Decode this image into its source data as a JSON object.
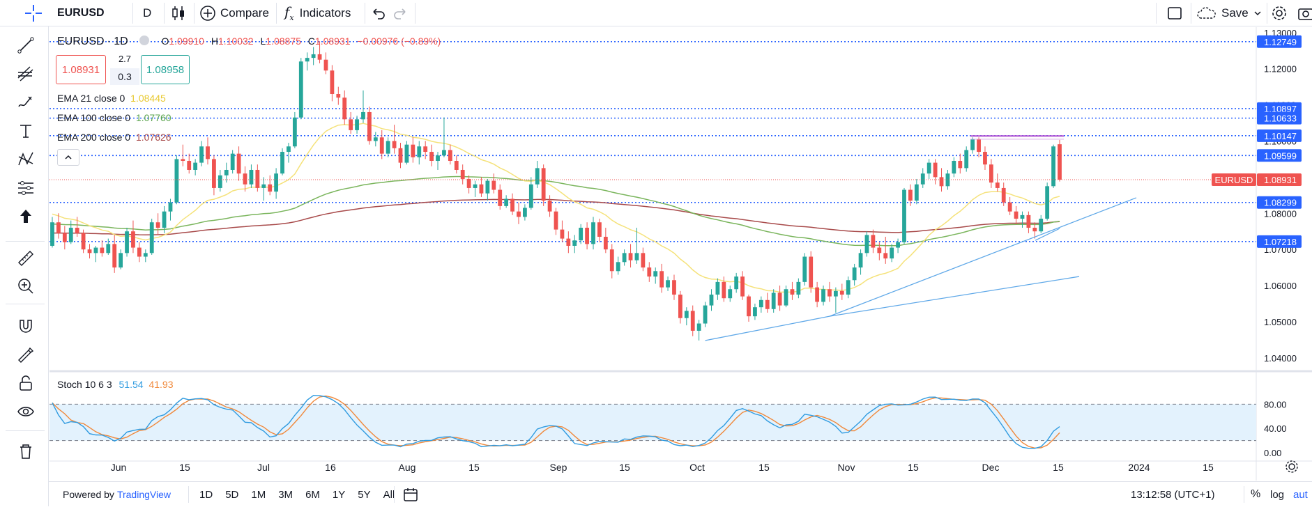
{
  "toolbar": {
    "symbol": "EURUSD",
    "interval": "D",
    "compare_label": "Compare",
    "indicators_label": "Indicators",
    "save_label": "Save",
    "icons": [
      "candles-icon",
      "compare-icon",
      "indicators-icon",
      "undo-icon",
      "redo-icon",
      "layout-icon",
      "cloud-icon",
      "settings-icon",
      "camera-icon"
    ]
  },
  "left_tools": [
    "crosshair-icon",
    "trend-line-icon",
    "fib-icon",
    "brush-icon",
    "text-icon",
    "pattern-icon",
    "forecast-icon",
    "arrow-up-icon",
    "ruler-icon",
    "zoom-in-icon",
    "magnet-icon",
    "lock-drawing-icon",
    "unlock-icon",
    "eye-icon",
    "trash-icon"
  ],
  "legend": {
    "symbol": "EURUSD",
    "interval": "1D",
    "o_label": "O",
    "o": "1.09910",
    "h_label": "H",
    "h": "1.10032",
    "l_label": "L",
    "l": "1.08875",
    "c_label": "C",
    "c": "1.08931",
    "change": "−0.00976 (−0.89%)",
    "sell_price": "1.08931",
    "spread_top": "2.7",
    "spread_bottom": "0.3",
    "buy_price": "1.08958",
    "ema21_label": "EMA 21 close 0",
    "ema21_value": "1.08445",
    "ema100_label": "EMA 100 close 0",
    "ema100_value": "1.07760",
    "ema200_label": "EMA 200 close 0",
    "ema200_value": "1.07626",
    "collapse_icon": "chevron-up-icon"
  },
  "stoch_legend": {
    "label": "Stoch 10 6 3",
    "k": "51.54",
    "d": "41.93"
  },
  "colors": {
    "up": "#26a69a",
    "down": "#ef5350",
    "ema21": "#f5e27a",
    "ema100": "#7ab55c",
    "ema200": "#a84a4a",
    "hline": "#2962ff",
    "trend": "#5fa8e8",
    "stoch_k": "#2f9be0",
    "stoch_d": "#f0883a",
    "stoch_band": "#e3f2fd",
    "current_price": "#ef5350"
  },
  "chart_data": {
    "type": "candlestick",
    "symbol": "EURUSD",
    "price_axis_ticks": [
      "1.13000",
      "1.12000",
      "1.11000",
      "1.10000",
      "1.09000",
      "1.08000",
      "1.07000",
      "1.06000",
      "1.05000",
      "1.04000"
    ],
    "price_range": [
      1.0365,
      1.1315
    ],
    "horizontal_levels": [
      "1.12749",
      "1.10897",
      "1.10633",
      "1.10147",
      "1.09599",
      "1.08299",
      "1.07218"
    ],
    "current_price_label": "EURUSD",
    "current_price": "1.08931",
    "time_axis_labels": [
      "Jun",
      "15",
      "Jul",
      "16",
      "Aug",
      "15",
      "Sep",
      "15",
      "Oct",
      "15",
      "Nov",
      "15",
      "Dec",
      "15",
      "2024",
      "15"
    ],
    "candles_ohlc": [
      [
        1.071,
        1.079,
        1.0705,
        1.0775
      ],
      [
        1.0775,
        1.08,
        1.073,
        1.0745
      ],
      [
        1.0745,
        1.0765,
        1.07,
        1.072
      ],
      [
        1.072,
        1.078,
        1.0715,
        1.076
      ],
      [
        1.076,
        1.079,
        1.0735,
        1.0745
      ],
      [
        1.0745,
        1.0755,
        1.069,
        1.07
      ],
      [
        1.07,
        1.0715,
        1.0675,
        1.069
      ],
      [
        1.069,
        1.071,
        1.0665,
        1.0705
      ],
      [
        1.0705,
        1.0725,
        1.068,
        1.069
      ],
      [
        1.069,
        1.073,
        1.0685,
        1.0715
      ],
      [
        1.0715,
        1.074,
        1.0635,
        1.065
      ],
      [
        1.065,
        1.07,
        1.0645,
        1.069
      ],
      [
        1.069,
        1.076,
        1.068,
        1.075
      ],
      [
        1.075,
        1.078,
        1.069,
        1.0705
      ],
      [
        1.0705,
        1.072,
        1.0665,
        1.068
      ],
      [
        1.068,
        1.07,
        1.0665,
        1.069
      ],
      [
        1.069,
        1.0785,
        1.0685,
        1.0775
      ],
      [
        1.0775,
        1.08,
        1.074,
        1.076
      ],
      [
        1.076,
        1.082,
        1.0745,
        1.0805
      ],
      [
        1.0805,
        1.084,
        1.078,
        1.083
      ],
      [
        1.083,
        1.096,
        1.0825,
        1.095
      ],
      [
        1.095,
        1.099,
        1.093,
        1.0945
      ],
      [
        1.0945,
        1.0965,
        1.091,
        1.092
      ],
      [
        1.092,
        1.095,
        1.0905,
        1.094
      ],
      [
        1.094,
        1.1,
        1.093,
        1.0985
      ],
      [
        1.0985,
        1.101,
        1.0935,
        1.095
      ],
      [
        1.095,
        1.096,
        1.085,
        1.087
      ],
      [
        1.087,
        1.092,
        1.086,
        1.0905
      ],
      [
        1.0905,
        1.094,
        1.0885,
        1.092
      ],
      [
        1.092,
        1.0975,
        1.091,
        1.0965
      ],
      [
        1.0965,
        1.0985,
        1.089,
        1.091
      ],
      [
        1.091,
        1.093,
        1.086,
        1.088
      ],
      [
        1.088,
        1.0935,
        1.087,
        1.092
      ],
      [
        1.092,
        1.0935,
        1.086,
        1.087
      ],
      [
        1.087,
        1.09,
        1.0835,
        1.088
      ],
      [
        1.088,
        1.0905,
        1.085,
        1.086
      ],
      [
        1.086,
        1.0925,
        1.084,
        1.091
      ],
      [
        1.091,
        1.098,
        1.0905,
        1.097
      ],
      [
        1.097,
        1.0995,
        1.094,
        1.0985
      ],
      [
        1.0985,
        1.108,
        1.098,
        1.1065
      ],
      [
        1.1065,
        1.123,
        1.106,
        1.122
      ],
      [
        1.122,
        1.1245,
        1.1195,
        1.123
      ],
      [
        1.123,
        1.126,
        1.121,
        1.124
      ],
      [
        1.124,
        1.1276,
        1.1215,
        1.1225
      ],
      [
        1.1225,
        1.1245,
        1.1185,
        1.1195
      ],
      [
        1.1195,
        1.121,
        1.111,
        1.113
      ],
      [
        1.113,
        1.115,
        1.11,
        1.112
      ],
      [
        1.112,
        1.114,
        1.1045,
        1.106
      ],
      [
        1.106,
        1.108,
        1.102,
        1.103
      ],
      [
        1.103,
        1.107,
        1.102,
        1.106
      ],
      [
        1.106,
        1.114,
        1.105,
        1.108
      ],
      [
        1.108,
        1.1095,
        1.099,
        1.1
      ],
      [
        1.1,
        1.1025,
        1.0985,
        1.101
      ],
      [
        1.101,
        1.103,
        1.095,
        1.0965
      ],
      [
        1.0965,
        1.101,
        1.0955,
        1.1
      ],
      [
        1.1,
        1.1045,
        1.0965,
        1.098
      ],
      [
        1.098,
        1.0995,
        1.0925,
        1.094
      ],
      [
        1.094,
        1.1,
        1.0935,
        1.099
      ],
      [
        1.099,
        1.101,
        1.094,
        1.0955
      ],
      [
        1.0955,
        1.1,
        1.0935,
        1.0985
      ],
      [
        1.0985,
        1.1,
        1.095,
        1.097
      ],
      [
        1.097,
        1.099,
        1.093,
        1.0945
      ],
      [
        1.0945,
        1.097,
        1.092,
        1.096
      ],
      [
        1.096,
        1.1065,
        1.0955,
        1.0975
      ],
      [
        1.0975,
        1.099,
        1.0935,
        1.0945
      ],
      [
        1.0945,
        1.096,
        1.091,
        1.092
      ],
      [
        1.092,
        1.0935,
        1.088,
        1.0895
      ],
      [
        1.0895,
        1.0905,
        1.0855,
        1.087
      ],
      [
        1.087,
        1.089,
        1.0845,
        1.088
      ],
      [
        1.088,
        1.09,
        1.0845,
        1.0855
      ],
      [
        1.0855,
        1.0895,
        1.0835,
        1.089
      ],
      [
        1.089,
        1.091,
        1.0855,
        1.0865
      ],
      [
        1.0865,
        1.088,
        1.081,
        1.082
      ],
      [
        1.082,
        1.085,
        1.0815,
        1.084
      ],
      [
        1.084,
        1.0855,
        1.0795,
        1.0805
      ],
      [
        1.0805,
        1.083,
        1.077,
        1.079
      ],
      [
        1.079,
        1.0825,
        1.078,
        1.0815
      ],
      [
        1.0815,
        1.09,
        1.081,
        1.088
      ],
      [
        1.088,
        1.0945,
        1.087,
        1.0925
      ],
      [
        1.0925,
        1.0935,
        1.082,
        1.0835
      ],
      [
        1.0835,
        1.085,
        1.079,
        1.0805
      ],
      [
        1.0805,
        1.0815,
        1.074,
        1.0755
      ],
      [
        1.0755,
        1.078,
        1.072,
        1.073
      ],
      [
        1.073,
        1.075,
        1.069,
        1.071
      ],
      [
        1.071,
        1.074,
        1.069,
        1.0725
      ],
      [
        1.0725,
        1.077,
        1.0715,
        1.076
      ],
      [
        1.076,
        1.0775,
        1.07,
        1.0715
      ],
      [
        1.0715,
        1.079,
        1.07,
        1.0775
      ],
      [
        1.0775,
        1.0785,
        1.072,
        1.0735
      ],
      [
        1.0735,
        1.076,
        1.069,
        1.07
      ],
      [
        1.07,
        1.0715,
        1.062,
        1.064
      ],
      [
        1.064,
        1.068,
        1.063,
        1.0665
      ],
      [
        1.0665,
        1.07,
        1.0655,
        1.069
      ],
      [
        1.069,
        1.0715,
        1.065,
        1.067
      ],
      [
        1.067,
        1.076,
        1.066,
        1.069
      ],
      [
        1.069,
        1.0705,
        1.064,
        1.065
      ],
      [
        1.065,
        1.0665,
        1.061,
        1.0625
      ],
      [
        1.0625,
        1.065,
        1.0605,
        1.064
      ],
      [
        1.064,
        1.066,
        1.058,
        1.0595
      ],
      [
        1.0595,
        1.0625,
        1.0585,
        1.0615
      ],
      [
        1.0615,
        1.063,
        1.056,
        1.0575
      ],
      [
        1.0575,
        1.0585,
        1.0495,
        1.051
      ],
      [
        1.051,
        1.054,
        1.049,
        1.053
      ],
      [
        1.053,
        1.0545,
        1.046,
        1.0475
      ],
      [
        1.0475,
        1.0505,
        1.0448,
        1.0495
      ],
      [
        1.0495,
        1.0555,
        1.0485,
        1.0545
      ],
      [
        1.0545,
        1.059,
        1.053,
        1.0575
      ],
      [
        1.0575,
        1.062,
        1.056,
        1.061
      ],
      [
        1.061,
        1.0625,
        1.0555,
        1.0565
      ],
      [
        1.0565,
        1.06,
        1.0555,
        1.059
      ],
      [
        1.059,
        1.0635,
        1.058,
        1.0625
      ],
      [
        1.0625,
        1.064,
        1.056,
        1.057
      ],
      [
        1.057,
        1.0575,
        1.05,
        1.0515
      ],
      [
        1.0515,
        1.055,
        1.0505,
        1.054
      ],
      [
        1.054,
        1.057,
        1.0525,
        1.056
      ],
      [
        1.056,
        1.058,
        1.0525,
        1.0535
      ],
      [
        1.0535,
        1.059,
        1.0525,
        1.058
      ],
      [
        1.058,
        1.06,
        1.053,
        1.0545
      ],
      [
        1.0545,
        1.06,
        1.054,
        1.059
      ],
      [
        1.059,
        1.061,
        1.056,
        1.0575
      ],
      [
        1.0575,
        1.062,
        1.0565,
        1.061
      ],
      [
        1.061,
        1.069,
        1.06,
        1.068
      ],
      [
        1.068,
        1.0695,
        1.058,
        1.0595
      ],
      [
        1.0595,
        1.061,
        1.054,
        1.0555
      ],
      [
        1.0555,
        1.06,
        1.0545,
        1.059
      ],
      [
        1.059,
        1.061,
        1.0555,
        1.057
      ],
      [
        1.057,
        1.0595,
        1.0525,
        1.0585
      ],
      [
        1.0585,
        1.0605,
        1.056,
        1.0575
      ],
      [
        1.0575,
        1.0625,
        1.0565,
        1.0615
      ],
      [
        1.0615,
        1.066,
        1.06,
        1.065
      ],
      [
        1.065,
        1.07,
        1.063,
        1.069
      ],
      [
        1.069,
        1.075,
        1.068,
        1.074
      ],
      [
        1.074,
        1.0755,
        1.069,
        1.0705
      ],
      [
        1.0705,
        1.072,
        1.067,
        1.069
      ],
      [
        1.069,
        1.0735,
        1.066,
        1.0675
      ],
      [
        1.0675,
        1.0715,
        1.0665,
        1.0705
      ],
      [
        1.0705,
        1.073,
        1.069,
        1.072
      ],
      [
        1.072,
        1.087,
        1.0715,
        1.0865
      ],
      [
        1.0865,
        1.088,
        1.082,
        1.0835
      ],
      [
        1.0835,
        1.0895,
        1.0825,
        1.088
      ],
      [
        1.088,
        1.0925,
        1.087,
        1.091
      ],
      [
        1.091,
        1.095,
        1.0895,
        1.094
      ],
      [
        1.094,
        1.095,
        1.088,
        1.09
      ],
      [
        1.09,
        1.0925,
        1.086,
        1.0875
      ],
      [
        1.0875,
        1.092,
        1.0865,
        1.091
      ],
      [
        1.091,
        1.0955,
        1.09,
        1.0945
      ],
      [
        1.0945,
        1.0965,
        1.091,
        1.0925
      ],
      [
        1.0925,
        1.0985,
        1.0915,
        1.0975
      ],
      [
        1.0975,
        1.101,
        1.0965,
        1.1005
      ],
      [
        1.1005,
        1.101,
        1.0955,
        1.097
      ],
      [
        1.097,
        1.0985,
        1.092,
        1.0935
      ],
      [
        1.0935,
        1.095,
        1.087,
        1.0885
      ],
      [
        1.0885,
        1.091,
        1.086,
        1.087
      ],
      [
        1.087,
        1.0885,
        1.082,
        1.083
      ],
      [
        1.083,
        1.0845,
        1.0795,
        1.0805
      ],
      [
        1.0805,
        1.082,
        1.077,
        1.0785
      ],
      [
        1.0785,
        1.0805,
        1.076,
        1.0795
      ],
      [
        1.0795,
        1.0805,
        1.0745,
        1.076
      ],
      [
        1.076,
        1.0775,
        1.073,
        1.075
      ],
      [
        1.075,
        1.0795,
        1.0745,
        1.0785
      ],
      [
        1.0785,
        1.0885,
        1.078,
        1.0875
      ],
      [
        1.0875,
        1.099,
        1.087,
        1.0985
      ],
      [
        1.0991,
        1.1003,
        1.0888,
        1.0893
      ]
    ]
  }
}
